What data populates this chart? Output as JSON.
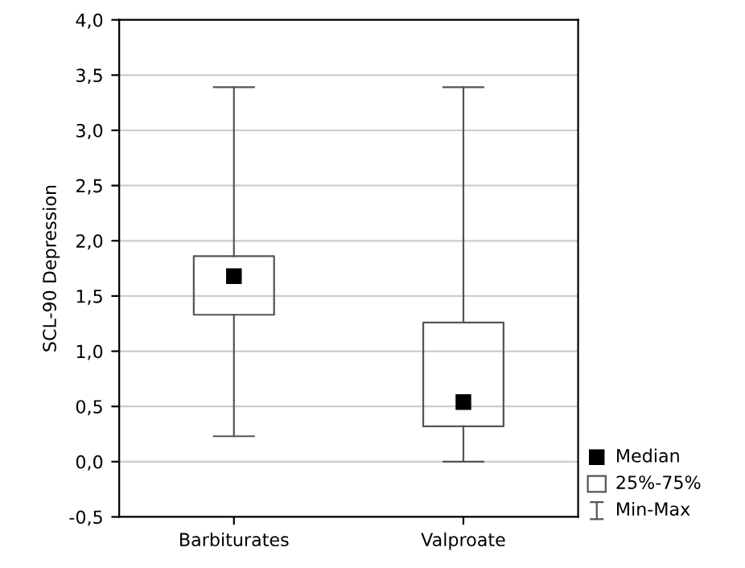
{
  "chart_data": {
    "type": "box",
    "ylabel": "SCL-90 Depression",
    "categories": [
      "Barbiturates",
      "Valproate"
    ],
    "boxes": [
      {
        "low": 0.23,
        "q1": 1.33,
        "median": 1.68,
        "q3": 1.86,
        "high": 3.39
      },
      {
        "low": 0.0,
        "q1": 0.32,
        "median": 0.54,
        "q3": 1.26,
        "high": 3.39
      }
    ],
    "ylim": [
      -0.5,
      4.0
    ],
    "yticks": [
      {
        "value": -0.5,
        "label": "-0,5"
      },
      {
        "value": 0,
        "label": "0,0"
      },
      {
        "value": 0.5,
        "label": "0,5"
      },
      {
        "value": 1.0,
        "label": "1,0"
      },
      {
        "value": 1.5,
        "label": "1,5"
      },
      {
        "value": 2.0,
        "label": "2,0"
      },
      {
        "value": 2.5,
        "label": "2,5"
      },
      {
        "value": 3.0,
        "label": "3,0"
      },
      {
        "value": 3.5,
        "label": "3,5"
      },
      {
        "value": 4.0,
        "label": "4,0"
      }
    ],
    "grid": "y",
    "marker": "square",
    "annotations": [
      "Median",
      "25%-75%",
      "Min-Max"
    ]
  }
}
